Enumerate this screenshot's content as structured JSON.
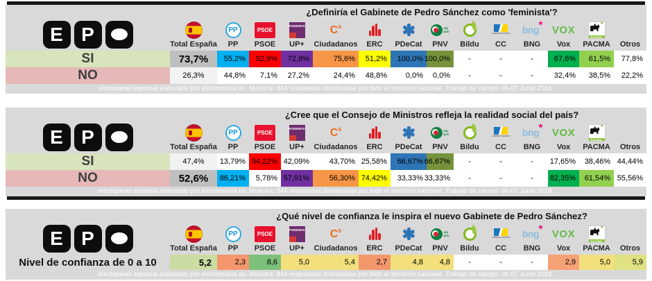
{
  "colors": {
    "panel": "#D9D9D9",
    "si_bg": "#D8E4BC",
    "no_bg": "#E6B8B7",
    "winner_total_bg": "#BFBFBF",
    "loser_total_bg": "#F2F2F2",
    "party": {
      "pp": "#00B0F0",
      "psoe": "#FF0000",
      "up": "#7030A0",
      "cs": "#F79646",
      "erc": "#FFFF00",
      "pdecat": "#2E75B6",
      "pnv": "#76933C",
      "vox": "#00B050",
      "pacma": "#92D050"
    }
  },
  "logo_text": {
    "ep_e": "E",
    "ep_p": "P",
    "pp": "PP",
    "psoe": "PSOE",
    "up": "PODEMOS",
    "cs_main": "C",
    "cs_sup": "s",
    "pnv_top": "eaj",
    "pnv_bottom": "pnv",
    "cc": "coalición canaria",
    "bng": "bng",
    "vox": "VOX",
    "pacma": "PACMA"
  },
  "chart_data": {
    "type": "table",
    "columns": [
      {
        "id": "total",
        "label": "Total España"
      },
      {
        "id": "pp",
        "label": "PP"
      },
      {
        "id": "psoe",
        "label": "PSOE"
      },
      {
        "id": "up",
        "label": "UP+"
      },
      {
        "id": "cs",
        "label": "Ciudadanos"
      },
      {
        "id": "erc",
        "label": "ERC"
      },
      {
        "id": "pdecat",
        "label": "PDeCat"
      },
      {
        "id": "pnv",
        "label": "PNV"
      },
      {
        "id": "bildu",
        "label": "Bildu"
      },
      {
        "id": "cc",
        "label": "CC"
      },
      {
        "id": "bng",
        "label": "BNG"
      },
      {
        "id": "vox",
        "label": "Vox"
      },
      {
        "id": "pacma",
        "label": "PACMA"
      },
      {
        "id": "otros",
        "label": "Otros"
      }
    ],
    "tables": [
      {
        "title": "¿Definiría el Gabinete de Pedro Sánchez como 'feminista'?",
        "footer": "electopanel especial elaborado por electomania.es. Muestra: 844 respuestas distribuidas por todo el territorio nacional. Trabajo de campo: 06-07 Junio 2018.",
        "rows": [
          {
            "label": "SI",
            "kind": "si",
            "total": {
              "v": "73,7%",
              "strong": true
            },
            "cells": [
              {
                "v": "55,2%",
                "hl": true
              },
              {
                "v": "92,9%",
                "hl": true
              },
              {
                "v": "72,8%",
                "hl": true
              },
              {
                "v": "75,6%",
                "hl": true
              },
              {
                "v": "51,2%",
                "hl": true
              },
              {
                "v": "100,0%",
                "hl": true
              },
              {
                "v": "100,0%",
                "hl": true
              },
              {
                "v": "-"
              },
              {
                "v": "-"
              },
              {
                "v": "-"
              },
              {
                "v": "67,6%",
                "hl": true
              },
              {
                "v": "61,5%",
                "hl": true
              },
              {
                "v": "77,8%"
              }
            ]
          },
          {
            "label": "NO",
            "kind": "no",
            "total": {
              "v": "26,3%",
              "strong": false
            },
            "cells": [
              {
                "v": "44,8%"
              },
              {
                "v": "7,1%"
              },
              {
                "v": "27,2%"
              },
              {
                "v": "24,4%"
              },
              {
                "v": "48,8%"
              },
              {
                "v": "0,0%"
              },
              {
                "v": "0,0%"
              },
              {
                "v": "-"
              },
              {
                "v": "-"
              },
              {
                "v": "-"
              },
              {
                "v": "32,4%"
              },
              {
                "v": "38,5%"
              },
              {
                "v": "22,2%"
              }
            ]
          }
        ]
      },
      {
        "title": "¿Cree que el Consejo de Ministros refleja la realidad social del país?",
        "footer": "electopanel especial elaborado por electomania.es. Muestra: 844 respuestas distribuidas por todo el territorio nacional. Trabajo de campo: 06-07 Junio 2018.",
        "rows": [
          {
            "label": "SI",
            "kind": "si",
            "total": {
              "v": "47,4%",
              "strong": false
            },
            "cells": [
              {
                "v": "13,79%"
              },
              {
                "v": "94,22%",
                "hl": true
              },
              {
                "v": "42,09%"
              },
              {
                "v": "43,70%"
              },
              {
                "v": "25,58%"
              },
              {
                "v": "66,67%",
                "hl": true
              },
              {
                "v": "66,67%",
                "hl": true
              },
              {
                "v": "-"
              },
              {
                "v": "-"
              },
              {
                "v": "-"
              },
              {
                "v": "17,65%"
              },
              {
                "v": "38,46%"
              },
              {
                "v": "44,44%"
              }
            ]
          },
          {
            "label": "NO",
            "kind": "no",
            "total": {
              "v": "52,6%",
              "strong": true
            },
            "cells": [
              {
                "v": "86,21%",
                "hl": true
              },
              {
                "v": "5,78%"
              },
              {
                "v": "57,91%",
                "hl": true
              },
              {
                "v": "56,30%",
                "hl": true
              },
              {
                "v": "74,42%",
                "hl": true
              },
              {
                "v": "33,33%"
              },
              {
                "v": "33,33%"
              },
              {
                "v": "-"
              },
              {
                "v": "-"
              },
              {
                "v": "-"
              },
              {
                "v": "82,35%",
                "hl": true
              },
              {
                "v": "61,54%",
                "hl": true
              },
              {
                "v": "55,56%"
              }
            ]
          }
        ]
      },
      {
        "title": "¿Qué nivel de confianza le inspira el nuevo Gabinete de Pedro Sánchez?",
        "footer": "electopanel especial elaborado por electomania.es. Muestra: 844 respuestas distribuidas por todo el territorio nacional. Trabajo de campo: 06-07 Junio 2018.",
        "rows": [
          {
            "label": "Nivel de confianza de 0 a 10",
            "kind": "scale",
            "total": {
              "v": "5,2",
              "strong": true,
              "bg": "#CBDCA3"
            },
            "cells": [
              {
                "v": "2,3",
                "bg": "#F4976D"
              },
              {
                "v": "8,6",
                "bg": "#7CC07A"
              },
              {
                "v": "5,0",
                "bg": "#F3E07D"
              },
              {
                "v": "5,4",
                "bg": "#F3E07D"
              },
              {
                "v": "2,7",
                "bg": "#F4976D"
              },
              {
                "v": "4,8",
                "bg": "#F3E07D"
              },
              {
                "v": "4,8",
                "bg": "#F3E07D"
              },
              {
                "v": "-",
                "bg": "#FFFFFF"
              },
              {
                "v": "-",
                "bg": "#FFFFFF"
              },
              {
                "v": "-",
                "bg": "#FFFFFF"
              },
              {
                "v": "2,9",
                "bg": "#F6A277"
              },
              {
                "v": "5,0",
                "bg": "#F3E07D"
              },
              {
                "v": "5,9",
                "bg": "#DFE182"
              }
            ]
          }
        ]
      }
    ]
  }
}
